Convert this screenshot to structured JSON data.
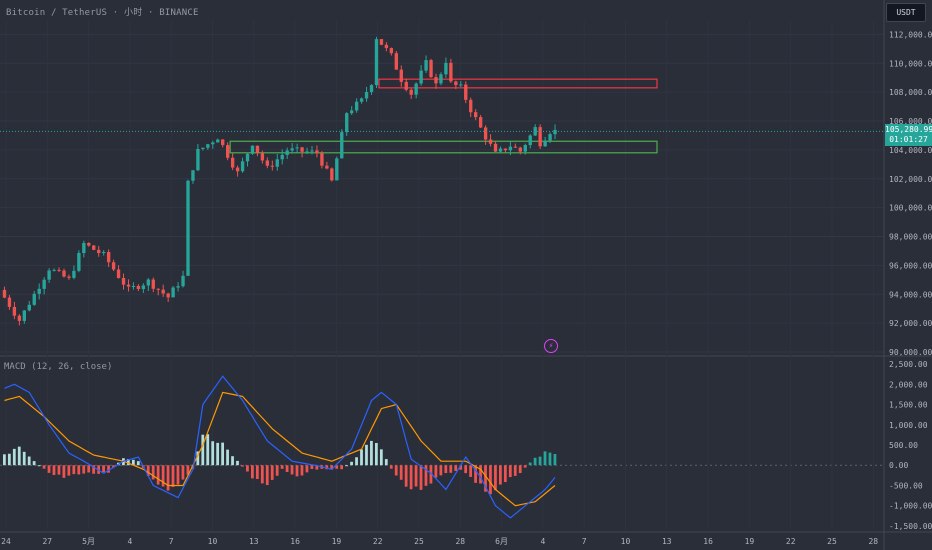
{
  "header": {
    "title": "Bitcoin / TetherUS · 小时 · BINANCE",
    "currency": "USDT",
    "price_tag": "105,280.99",
    "countdown": "01:01:27"
  },
  "indicator": {
    "label": "MACD (12, 26, close)"
  },
  "icons": {
    "alert": "lightning-icon"
  },
  "colors": {
    "up": "#26a69a",
    "down": "#ef5350",
    "macd_line": "#2962ff",
    "signal_line": "#ff9800",
    "support_zone": "#4caf50",
    "resistance_zone": "#f23645"
  },
  "chart_data": [
    {
      "type": "candlestick",
      "ylim": [
        90000,
        113000
      ],
      "y_ticks": [
        "112,000.00",
        "110,000.00",
        "108,000.00",
        "106,000.00",
        "104,000.00",
        "102,000.00",
        "100,000.00",
        "98,000.00",
        "96,000.00",
        "94,000.00",
        "92,000.00",
        "90,000.00"
      ],
      "x_ticks": [
        "24",
        "27",
        "5月",
        "4",
        "7",
        "10",
        "13",
        "16",
        "19",
        "22",
        "25",
        "28",
        "6月",
        "4",
        "7",
        "10",
        "13",
        "16",
        "19",
        "22",
        "25",
        "28"
      ],
      "last_price": 105280.99,
      "zones": [
        {
          "name": "resistance",
          "low": 108300,
          "high": 108900
        },
        {
          "name": "support",
          "low": 103800,
          "high": 104600
        }
      ],
      "path": [
        [
          0,
          94300
        ],
        [
          4,
          92200
        ],
        [
          10,
          95800
        ],
        [
          14,
          95000
        ],
        [
          17,
          97500
        ],
        [
          21,
          96700
        ],
        [
          26,
          94300
        ],
        [
          30,
          94900
        ],
        [
          34,
          93800
        ],
        [
          37,
          95200
        ],
        [
          38,
          101700
        ],
        [
          40,
          103900
        ],
        [
          44,
          104900
        ],
        [
          48,
          102400
        ],
        [
          51,
          104500
        ],
        [
          54,
          102700
        ],
        [
          58,
          104000
        ],
        [
          64,
          103800
        ],
        [
          67,
          101800
        ],
        [
          70,
          106600
        ],
        [
          73,
          107400
        ],
        [
          75,
          108700
        ],
        [
          76,
          111800
        ],
        [
          79,
          110500
        ],
        [
          81,
          108900
        ],
        [
          83,
          107900
        ],
        [
          86,
          110000
        ],
        [
          88,
          108500
        ],
        [
          90,
          110200
        ],
        [
          91,
          108600
        ],
        [
          93,
          108300
        ],
        [
          95,
          106800
        ],
        [
          97,
          105500
        ],
        [
          100,
          103700
        ],
        [
          103,
          104300
        ],
        [
          105,
          103900
        ],
        [
          108,
          105500
        ],
        [
          109,
          104500
        ],
        [
          111,
          105300
        ]
      ]
    },
    {
      "type": "macd",
      "ylim": [
        -1600,
        2600
      ],
      "y_ticks": [
        "2,500.00",
        "2,000.00",
        "1,500.00",
        "1,000.00",
        "500.00",
        "0.00",
        "-500.00",
        "-1,000.00",
        "-1,500.00"
      ],
      "macd": [
        [
          0,
          1900
        ],
        [
          2,
          2000
        ],
        [
          5,
          1800
        ],
        [
          9,
          1000
        ],
        [
          13,
          300
        ],
        [
          16,
          100
        ],
        [
          20,
          -200
        ],
        [
          24,
          100
        ],
        [
          27,
          200
        ],
        [
          30,
          -500
        ],
        [
          35,
          -800
        ],
        [
          38,
          -100
        ],
        [
          40,
          1500
        ],
        [
          44,
          2200
        ],
        [
          48,
          1600
        ],
        [
          53,
          600
        ],
        [
          58,
          100
        ],
        [
          63,
          -10
        ],
        [
          66,
          -100
        ],
        [
          70,
          400
        ],
        [
          74,
          1600
        ],
        [
          76,
          1800
        ],
        [
          79,
          1500
        ],
        [
          82,
          150
        ],
        [
          86,
          -200
        ],
        [
          89,
          -600
        ],
        [
          93,
          200
        ],
        [
          96,
          -300
        ],
        [
          99,
          -1000
        ],
        [
          102,
          -1300
        ],
        [
          105,
          -1000
        ],
        [
          109,
          -600
        ],
        [
          111,
          -300
        ]
      ],
      "signal": [
        [
          0,
          1600
        ],
        [
          3,
          1700
        ],
        [
          8,
          1200
        ],
        [
          13,
          600
        ],
        [
          18,
          250
        ],
        [
          24,
          100
        ],
        [
          28,
          -100
        ],
        [
          33,
          -500
        ],
        [
          36,
          -500
        ],
        [
          40,
          500
        ],
        [
          44,
          1800
        ],
        [
          48,
          1700
        ],
        [
          54,
          900
        ],
        [
          60,
          300
        ],
        [
          66,
          100
        ],
        [
          72,
          400
        ],
        [
          76,
          1400
        ],
        [
          79,
          1500
        ],
        [
          84,
          600
        ],
        [
          88,
          100
        ],
        [
          93,
          100
        ],
        [
          96,
          -100
        ],
        [
          99,
          -600
        ],
        [
          103,
          -1000
        ],
        [
          107,
          -900
        ],
        [
          111,
          -500
        ]
      ],
      "histogram": [
        [
          0,
          300
        ],
        [
          3,
          400
        ],
        [
          6,
          100
        ],
        [
          9,
          -200
        ],
        [
          12,
          -300
        ],
        [
          15,
          -200
        ],
        [
          18,
          -200
        ],
        [
          21,
          -200
        ],
        [
          24,
          200
        ],
        [
          27,
          100
        ],
        [
          30,
          -400
        ],
        [
          33,
          -700
        ],
        [
          36,
          -400
        ],
        [
          38,
          -100
        ],
        [
          40,
          800
        ],
        [
          42,
          600
        ],
        [
          44,
          500
        ],
        [
          47,
          100
        ],
        [
          50,
          -300
        ],
        [
          53,
          -500
        ],
        [
          56,
          -100
        ],
        [
          59,
          -300
        ],
        [
          62,
          -100
        ],
        [
          65,
          -100
        ],
        [
          68,
          -100
        ],
        [
          71,
          200
        ],
        [
          74,
          700
        ],
        [
          76,
          400
        ],
        [
          78,
          -100
        ],
        [
          81,
          -500
        ],
        [
          83,
          -600
        ],
        [
          86,
          -400
        ],
        [
          89,
          -200
        ],
        [
          92,
          -100
        ],
        [
          95,
          -400
        ],
        [
          98,
          -700
        ],
        [
          101,
          -400
        ],
        [
          104,
          -200
        ],
        [
          107,
          200
        ],
        [
          109,
          300
        ],
        [
          111,
          300
        ]
      ]
    }
  ]
}
